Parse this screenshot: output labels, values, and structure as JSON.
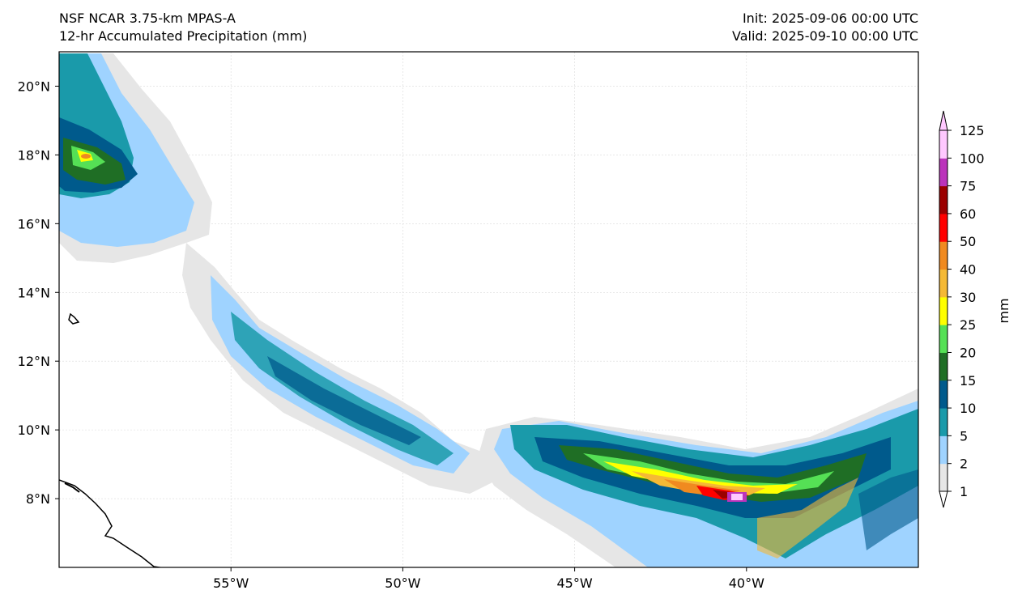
{
  "titles": {
    "model": "NSF NCAR 3.75-km MPAS-A",
    "field": "12-hr Accumulated Precipitation (mm)",
    "init": "Init: 2025-09-06 00:00 UTC",
    "valid": "Valid: 2025-09-10 00:00 UTC"
  },
  "map": {
    "lon_range": [
      -60,
      -35
    ],
    "lat_range": [
      6,
      21
    ],
    "lon_ticks": [
      {
        "value": -55,
        "label": "55°W"
      },
      {
        "value": -50,
        "label": "50°W"
      },
      {
        "value": -45,
        "label": "45°W"
      },
      {
        "value": -40,
        "label": "40°W"
      }
    ],
    "lat_ticks": [
      {
        "value": 8,
        "label": "8°N"
      },
      {
        "value": 10,
        "label": "10°N"
      },
      {
        "value": 12,
        "label": "12°N"
      },
      {
        "value": 14,
        "label": "14°N"
      },
      {
        "value": 16,
        "label": "16°N"
      },
      {
        "value": 18,
        "label": "18°N"
      },
      {
        "value": 20,
        "label": "20°N"
      }
    ],
    "grid": true
  },
  "colorbar": {
    "label": "mm",
    "levels": [
      {
        "value": 1,
        "label": "1"
      },
      {
        "value": 2,
        "label": "2"
      },
      {
        "value": 5,
        "label": "5"
      },
      {
        "value": 10,
        "label": "10"
      },
      {
        "value": 15,
        "label": "15"
      },
      {
        "value": 20,
        "label": "20"
      },
      {
        "value": 25,
        "label": "25"
      },
      {
        "value": 30,
        "label": "30"
      },
      {
        "value": 40,
        "label": "40"
      },
      {
        "value": 50,
        "label": "50"
      },
      {
        "value": 60,
        "label": "60"
      },
      {
        "value": 75,
        "label": "75"
      },
      {
        "value": 100,
        "label": "100"
      },
      {
        "value": 125,
        "label": "125"
      }
    ],
    "colors": [
      "#e6e6e6",
      "#9fd3ff",
      "#1a9aaa",
      "#005a8c",
      "#1f6e25",
      "#55e055",
      "#ffff00",
      "#f5b935",
      "#f08a20",
      "#ff0000",
      "#9b0000",
      "#bb33bb",
      "#ffc8ff"
    ]
  }
}
